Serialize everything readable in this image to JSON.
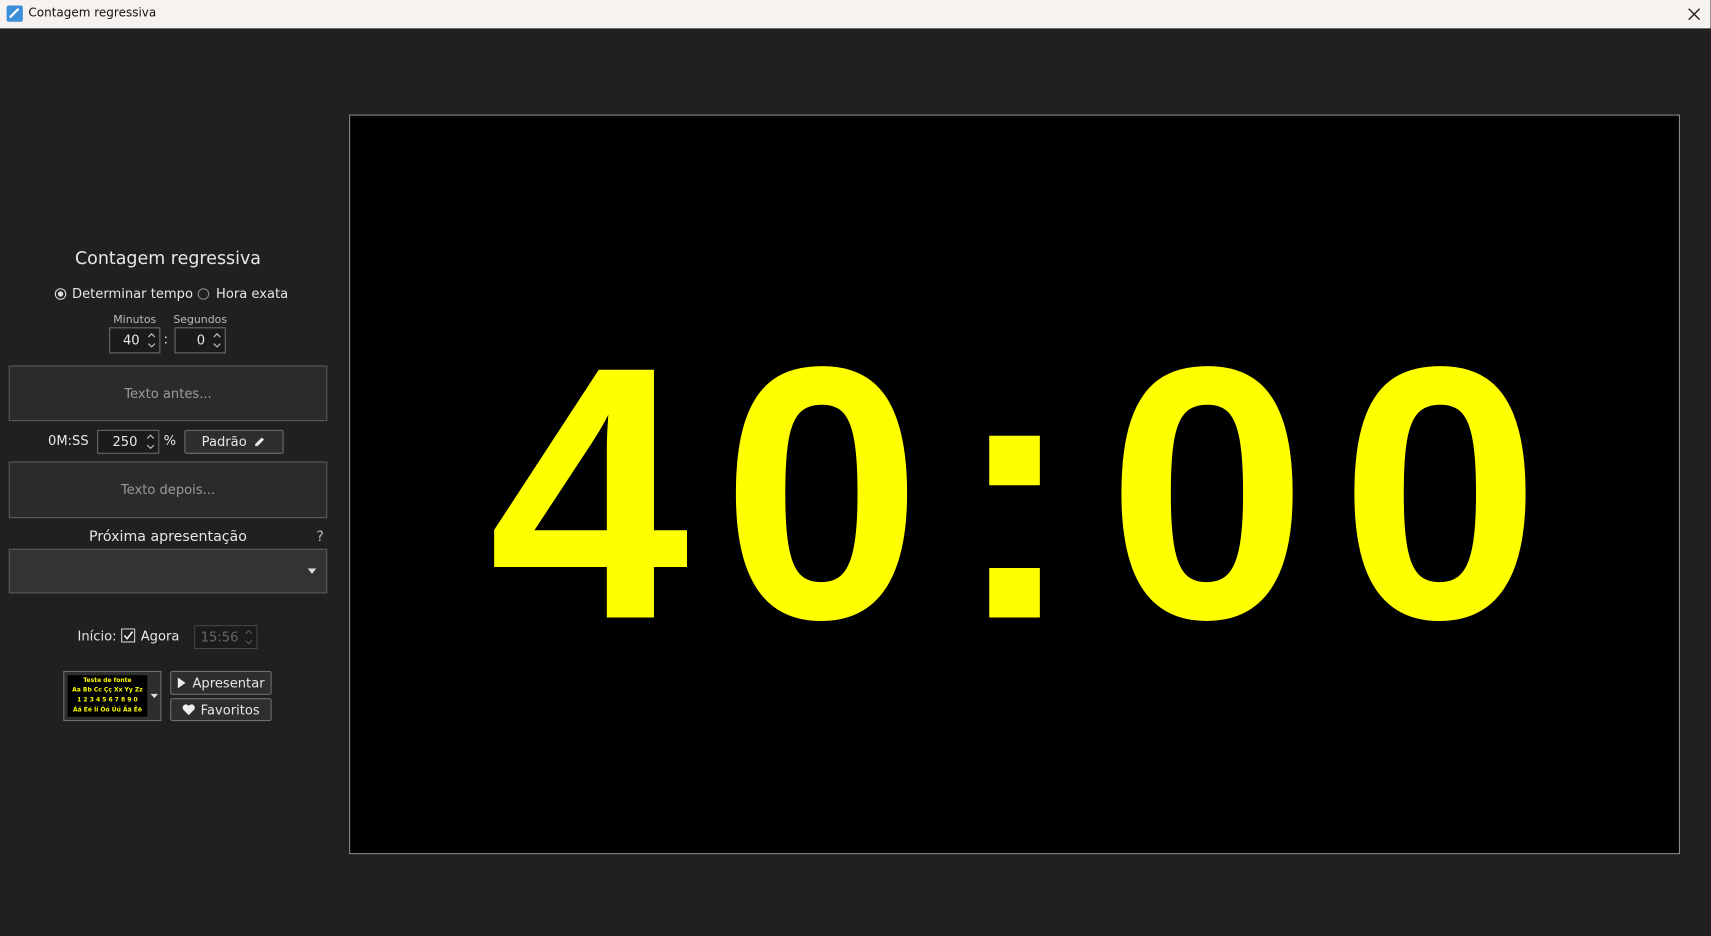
{
  "window": {
    "title": "Contagem regressiva"
  },
  "panel": {
    "title": "Contagem regressiva",
    "mode_options": [
      "Determinar tempo",
      "Hora exata"
    ],
    "minutes_label": "Minutos",
    "seconds_label": "Segundos",
    "minutes": "40",
    "separator": ":",
    "seconds": "0",
    "text_before_placeholder": "Texto antes...",
    "format": "0M:SS",
    "size": "250",
    "size_unit": "%",
    "style_button": "Padrão",
    "text_after_placeholder": "Texto depois...",
    "next_label": "Próxima apresentação",
    "help": "?",
    "start_label": "Início:",
    "now_checkbox": "Agora",
    "start_time": "15:56",
    "font_preview": [
      "Teste de fonte",
      "Aa Bb Cc Çç Xx Yy Zz",
      "1 2 3 4 5 6 7 8 9 0",
      "Áá Éé Íí Óó Úú Ãã Ẽẽ"
    ],
    "present_button": "Apresentar",
    "favorites_button": "Favoritos"
  },
  "preview": {
    "display": "40:00"
  }
}
